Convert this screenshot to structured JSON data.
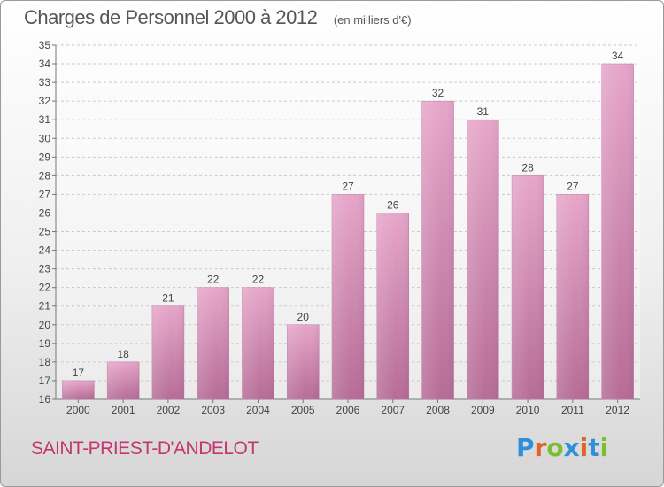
{
  "chart_data": {
    "type": "bar",
    "title": "Charges de Personnel 2000 à 2012",
    "subtitle": "(en milliers d'€)",
    "categories": [
      "2000",
      "2001",
      "2002",
      "2003",
      "2004",
      "2005",
      "2006",
      "2007",
      "2008",
      "2009",
      "2010",
      "2011",
      "2012"
    ],
    "values": [
      17,
      18,
      21,
      22,
      22,
      20,
      27,
      26,
      32,
      31,
      28,
      27,
      34
    ],
    "ylim": [
      16,
      35
    ],
    "yticks": [
      16,
      17,
      18,
      19,
      20,
      21,
      22,
      23,
      24,
      25,
      26,
      27,
      28,
      29,
      30,
      31,
      32,
      33,
      34,
      35
    ],
    "grid": true,
    "bar_color": "#d98ab4"
  },
  "footer": {
    "commune": "SAINT-PRIEST-D'ANDELOT",
    "brand": "Proxiti",
    "brand_letters": [
      {
        "ch": "P",
        "color": "#2f8fd8"
      },
      {
        "ch": "r",
        "color": "#e0642a"
      },
      {
        "ch": "o",
        "color": "#7bbf2e"
      },
      {
        "ch": "x",
        "color": "#2f8fd8"
      },
      {
        "ch": "i",
        "color": "#e0642a"
      },
      {
        "ch": "t",
        "color": "#2f8fd8"
      },
      {
        "ch": "i",
        "color": "#7bbf2e"
      }
    ]
  }
}
